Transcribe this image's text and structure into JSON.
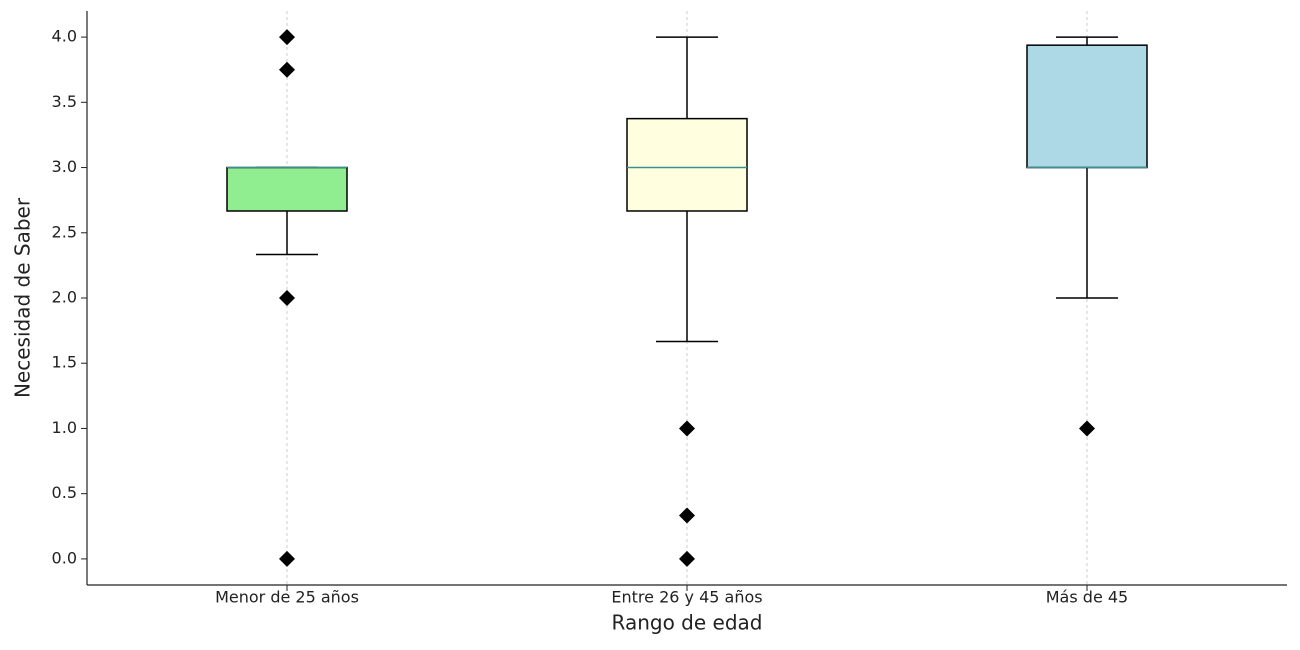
{
  "chart_data": {
    "type": "box",
    "x_label": "Rango de edad",
    "y_label": "Necesidad de Saber",
    "categories": [
      "Menor de 25 años",
      "Entre 26 y 45 años",
      "Más de 45"
    ],
    "boxes": [
      {
        "color": "#90ee90",
        "whislo": 2.333,
        "q1": 2.667,
        "med": 3.0,
        "q3": 3.0,
        "whishi": 3.0,
        "fliers": [
          4.0,
          3.75,
          2.0,
          0.0
        ]
      },
      {
        "color": "#ffffe0",
        "whislo": 1.667,
        "q1": 2.667,
        "med": 3.0,
        "q3": 3.375,
        "whishi": 4.0,
        "fliers": [
          1.0,
          0.333,
          0.0
        ]
      },
      {
        "color": "#add8e6",
        "whislo": 2.0,
        "q1": 3.0,
        "med": 3.0,
        "q3": 3.938,
        "whishi": 4.0,
        "fliers": [
          1.0
        ]
      }
    ],
    "median_color": "#3d8f8f",
    "ylim": [
      -0.2,
      4.2
    ],
    "yticks": [
      {
        "value": 0,
        "label": "0.0"
      },
      0.5,
      {
        "value": 1,
        "label": "1.0"
      },
      1.5,
      {
        "value": 2,
        "label": "2.0"
      },
      2.5,
      {
        "value": 3,
        "label": "3.0"
      },
      3.5,
      {
        "value": 4,
        "label": "4.0"
      }
    ],
    "x_grid": true
  }
}
